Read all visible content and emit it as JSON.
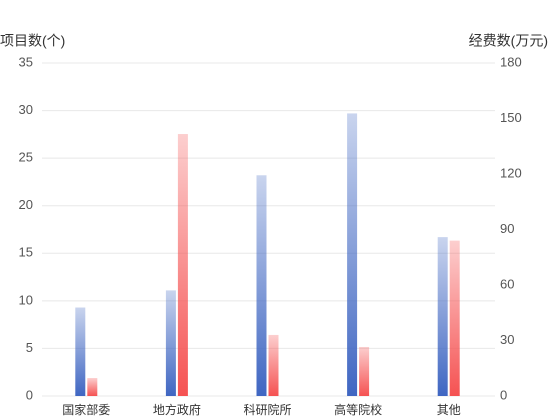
{
  "chart_data": {
    "type": "bar",
    "y_label": "项目数(个)",
    "y2_label": "经费数(万元)",
    "categories": [
      "国家部委",
      "地方政府",
      "科研院所",
      "高等院校",
      "其他"
    ],
    "series": [
      {
        "color": "#3f66c2",
        "values": [
          9.3,
          11.1,
          23.2,
          29.7,
          16.7
        ]
      },
      {
        "color": "#f55252",
        "axis": "y2",
        "values": [
          9.7,
          141.6,
          33,
          26.5,
          84
        ]
      }
    ],
    "ylim": [
      0,
      35
    ],
    "yticks": [
      0,
      5,
      10,
      15,
      20,
      25,
      30,
      35
    ],
    "y2lim": [
      0,
      180
    ],
    "y2ticks": [
      0,
      30,
      60,
      90,
      120,
      150,
      180
    ],
    "grid": true
  }
}
